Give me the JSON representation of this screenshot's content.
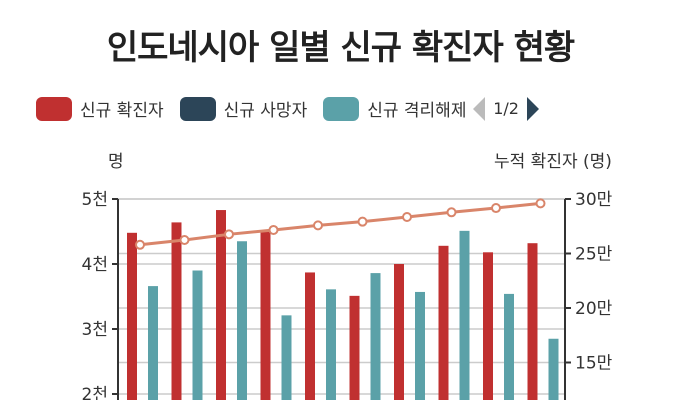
{
  "title": "인도네시아 일별 신규 확진자 현황",
  "legend": {
    "items": [
      {
        "label": "신규 확진자",
        "color": "#c03030"
      },
      {
        "label": "신규 사망자",
        "color": "#2c4558"
      },
      {
        "label": "신규 격리해제",
        "color": "#5ba1a8"
      }
    ],
    "pager": "1/2"
  },
  "chart_data": {
    "type": "bar",
    "title": "인도네시아 일별 신규 확진자 현황",
    "ylabel": "명",
    "y2label": "누적 확진자 (명)",
    "ylim": [
      2000,
      5000
    ],
    "y2lim": [
      150000,
      300000
    ],
    "yticks": [
      {
        "value": 5000,
        "label": "5천"
      },
      {
        "value": 4000,
        "label": "4천"
      },
      {
        "value": 3000,
        "label": "3천"
      },
      {
        "value": 2000,
        "label": "2천"
      }
    ],
    "y2ticks": [
      {
        "value": 300000,
        "label": "30만"
      },
      {
        "value": 250000,
        "label": "25만"
      },
      {
        "value": 200000,
        "label": "20만"
      },
      {
        "value": 150000,
        "label": "15만"
      }
    ],
    "grid": true,
    "legend_position": "top",
    "series": [
      {
        "name": "신규 확진자",
        "type": "bar",
        "axis": "left",
        "color": "#c03030",
        "values": [
          4480,
          4640,
          4830,
          4510,
          3870,
          3510,
          4000,
          4280,
          4180,
          4320
        ]
      },
      {
        "name": "신규 격리해제",
        "type": "bar",
        "axis": "left",
        "color": "#5ba1a8",
        "values": [
          3660,
          3900,
          4350,
          3210,
          3610,
          3860,
          3570,
          4510,
          3540,
          2850
        ]
      },
      {
        "name": "누적 확진자",
        "type": "line",
        "axis": "right",
        "color": "#d9856a",
        "values": [
          258000,
          262400,
          267600,
          271600,
          275800,
          279200,
          283500,
          287800,
          291700,
          296000
        ]
      }
    ]
  }
}
